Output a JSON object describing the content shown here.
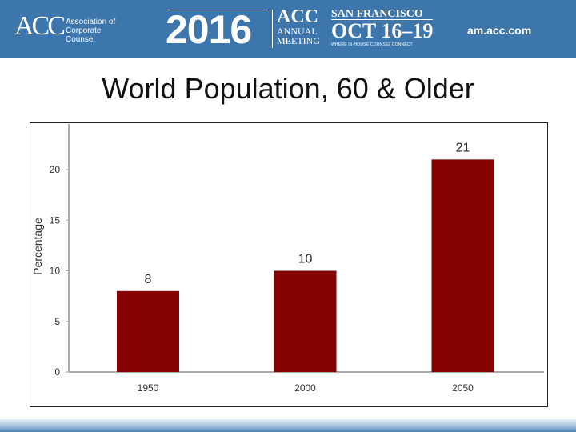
{
  "banner": {
    "logo_text": "ACC",
    "org_name": "Association of Corporate Counsel",
    "year": "2016",
    "event_acc": "ACC",
    "event_name": "ANNUAL MEETING",
    "city": "SAN FRANCISCO",
    "dates": "OCT 16–19",
    "tagline": "WHERE IN-HOUSE COUNSEL CONNECT",
    "url": "am.acc.com"
  },
  "slide_title": "World Population, 60 & Older",
  "chart_data": {
    "type": "bar",
    "title": "World Population, 60 & Older",
    "xlabel": "",
    "ylabel": "Percentage",
    "categories": [
      "1950",
      "2000",
      "2050"
    ],
    "values": [
      8,
      10,
      21
    ],
    "data_labels": [
      "8",
      "10",
      "21"
    ],
    "ylim": [
      0,
      24
    ],
    "yticks": [
      0,
      5,
      10,
      15,
      20
    ],
    "bar_color": "#850000",
    "grid": false,
    "legend": "none"
  }
}
